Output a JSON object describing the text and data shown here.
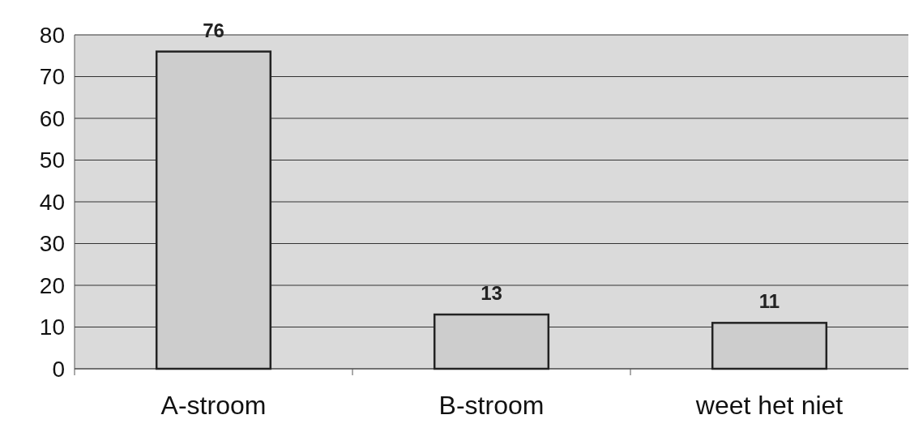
{
  "chart_data": {
    "type": "bar",
    "categories": [
      "A-stroom",
      "B-stroom",
      "weet het niet"
    ],
    "values": [
      76,
      13,
      11
    ],
    "color": "#cdcdcd",
    "ylim": [
      0,
      80
    ],
    "yticks": [
      0,
      10,
      20,
      30,
      40,
      50,
      60,
      70,
      80
    ],
    "grid": "y",
    "data_labels": true
  }
}
